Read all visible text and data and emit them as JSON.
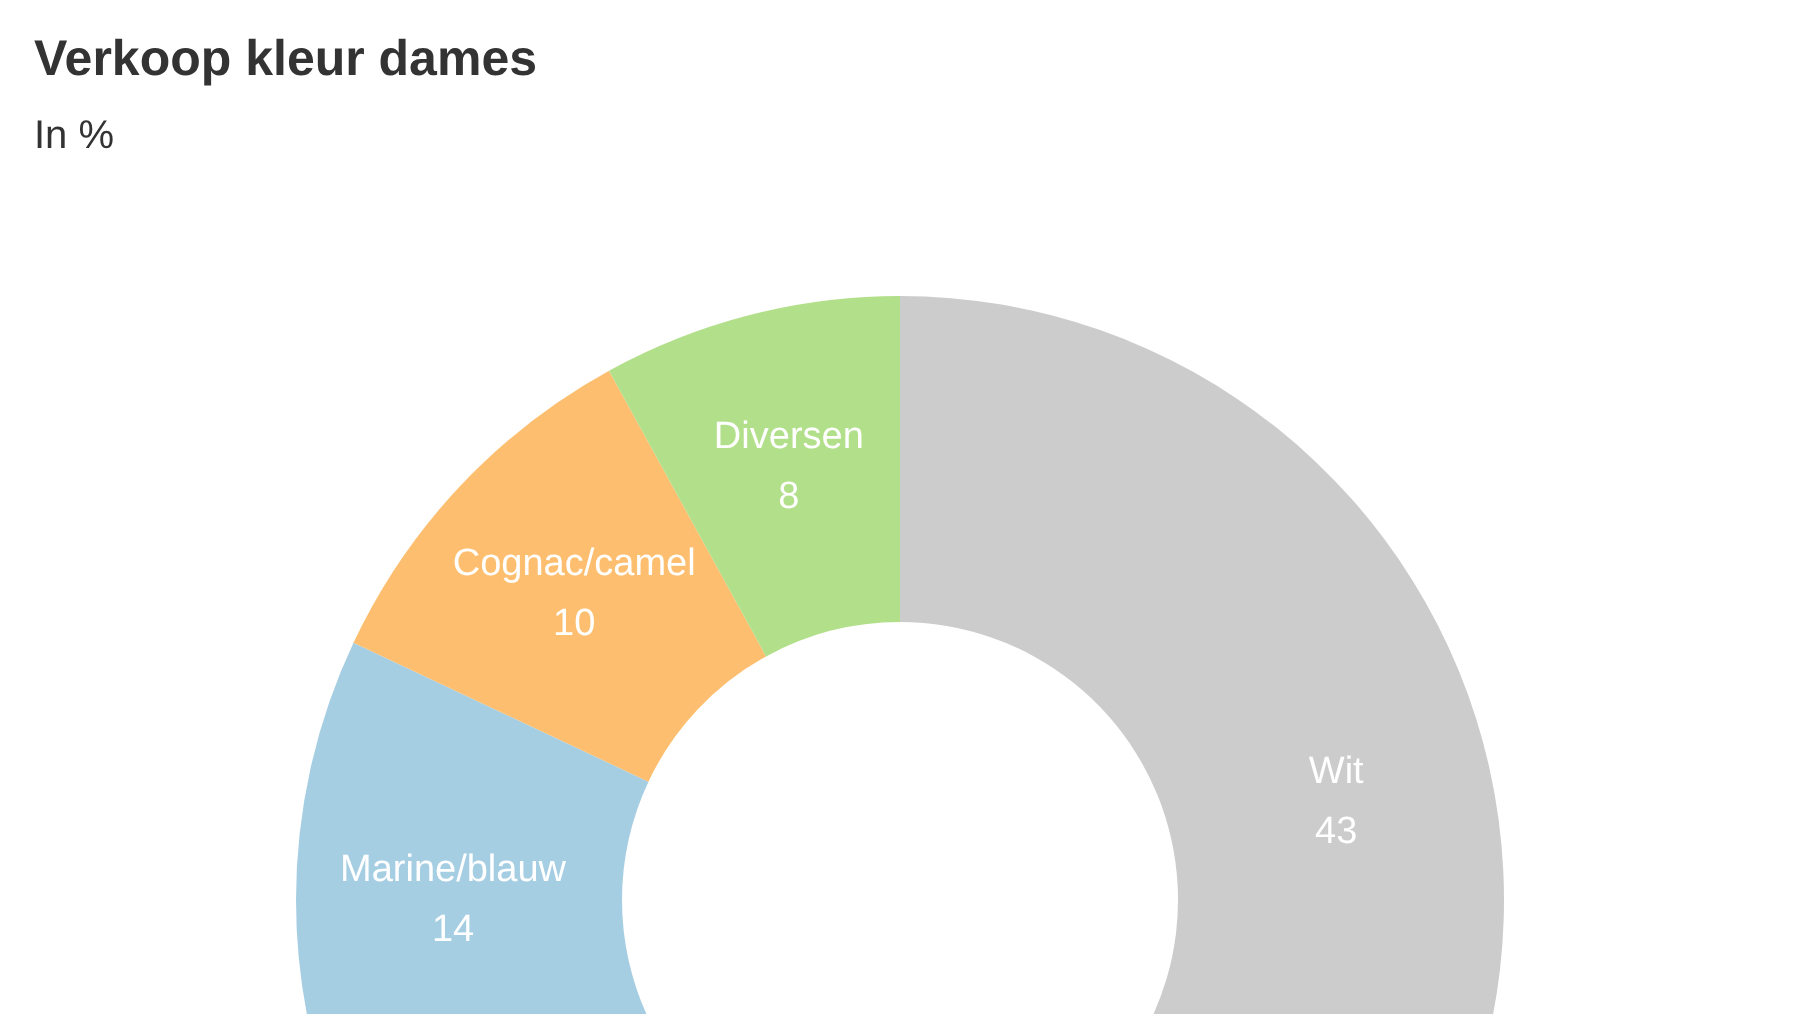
{
  "chart_data": {
    "type": "donut",
    "title": "Verkoop kleur dames",
    "subtitle": "In %",
    "categories": [
      "Wit",
      "Marine/blauw",
      "Cognac/camel",
      "Diversen"
    ],
    "values": [
      43,
      14,
      10,
      8
    ],
    "colors": [
      "#cccccc",
      "#a6cee3",
      "#fdbf6f",
      "#b2df8a"
    ],
    "data_labels": true
  }
}
